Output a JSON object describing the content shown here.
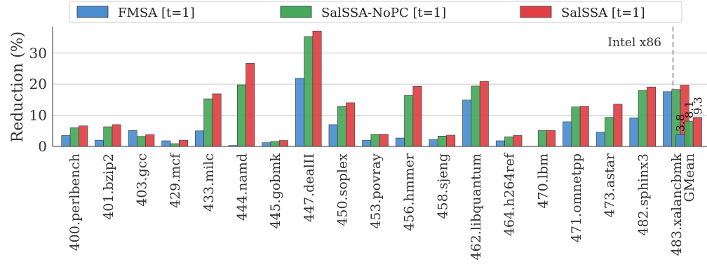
{
  "chart_data": {
    "type": "bar",
    "ylabel": "Reduction (%)",
    "xlabel": "",
    "ylim": [
      0,
      38.5
    ],
    "yticks": [
      0,
      10,
      20,
      30
    ],
    "grid": "horizontal",
    "legend_position": "top",
    "annotation": "Intel x86",
    "categories": [
      "400.perlbench",
      "401.bzip2",
      "403.gcc",
      "429.mcf",
      "433.milc",
      "444.namd",
      "445.gobmk",
      "447.dealII",
      "450.soplex",
      "453.povray",
      "456.hmmer",
      "458.sjeng",
      "462.libquantum",
      "464.h264ref",
      "470.lbm",
      "471.omnetpp",
      "473.astar",
      "482.sphinx3",
      "483.xalancbmk"
    ],
    "series": [
      {
        "name": "FMSA [t=1]",
        "color": "#4a8ed0",
        "values": [
          3.5,
          2.0,
          5.1,
          1.8,
          5.0,
          0.3,
          1.2,
          21.9,
          7.0,
          2.0,
          2.7,
          2.2,
          14.9,
          1.8,
          0.0,
          7.9,
          4.6,
          9.2,
          17.6
        ]
      },
      {
        "name": "SalSSA-NoPC [t=1]",
        "color": "#46a85a",
        "values": [
          6.0,
          6.3,
          3.2,
          0.9,
          15.3,
          19.8,
          1.6,
          35.3,
          12.9,
          3.9,
          16.4,
          3.3,
          19.4,
          3.1,
          5.1,
          12.7,
          9.3,
          18.0,
          18.3
        ]
      },
      {
        "name": "SalSSA [t=1]",
        "color": "#e04043",
        "values": [
          6.6,
          7.0,
          3.8,
          2.0,
          16.9,
          26.7,
          1.9,
          37.1,
          14.0,
          3.9,
          19.3,
          3.6,
          20.9,
          3.5,
          5.1,
          12.9,
          13.6,
          19.1,
          19.7
        ]
      }
    ],
    "gmean": {
      "label": "GMean",
      "values": [
        3.8,
        8.1,
        9.3
      ],
      "value_labels": [
        "3.8",
        "8.1",
        "9.3"
      ]
    }
  }
}
